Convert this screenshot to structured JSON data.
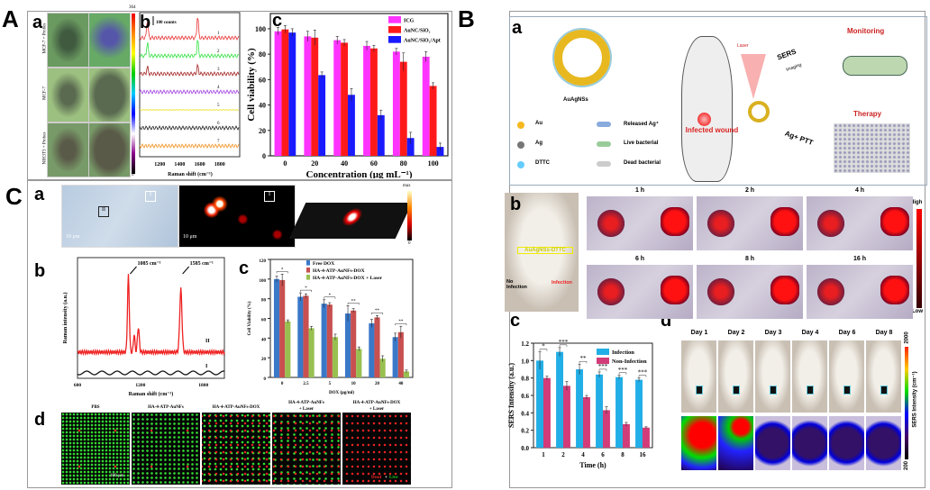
{
  "labels": {
    "A": "A",
    "B": "B",
    "C": "C",
    "a": "a",
    "b": "b",
    "c": "c",
    "d": "d"
  },
  "panelA": {
    "a": {
      "row_labels": [
        "MCF-7 + Probes",
        "MCF-7",
        "NIH3T3 + Probes"
      ],
      "colorbar": {
        "max": "364",
        "min": "0"
      },
      "spot_labels": [
        "1",
        "2",
        "3",
        "4",
        "5",
        "6",
        "7"
      ]
    },
    "b": {
      "scale_label": "100 counts",
      "xlabel": "Raman shift (cm⁻¹)",
      "xticks": [
        "1200",
        "1400",
        "1600",
        "1800"
      ],
      "trace_labels": [
        "1",
        "2",
        "3",
        "4",
        "5",
        "6",
        "7"
      ],
      "trace_colors": [
        "#e83030",
        "#30e040",
        "#a02020",
        "#a040e0",
        "#e8e020",
        "#202020",
        "#f09020"
      ]
    }
  },
  "panelC": {
    "a": {
      "scale_label": "10 μm",
      "region_labels": [
        "I",
        "II"
      ],
      "colorbar": {
        "max": "max",
        "min": "0"
      }
    },
    "b": {
      "ylabel": "Raman intensity (a.u.)",
      "xlabel": "Raman shift (cm⁻¹)",
      "xticks": [
        "600",
        "1200",
        "1800"
      ],
      "peaks": [
        {
          "label": "1085 cm⁻¹",
          "x": 1085
        },
        {
          "label": "1585 cm⁻¹",
          "x": 1585
        }
      ],
      "series_labels": [
        "II",
        "I"
      ]
    },
    "d": {
      "titles": [
        "PBS",
        "HA-4-ATP-AuNFs",
        "HA-4-ATP-AuNFs-DOX",
        "HA-4-ATP-AuNFs\n+ Laser",
        "HA-4-ATP-AuNFs-DOX\n+ Laser"
      ],
      "scale_label": "100 μm",
      "dead": "Dead",
      "plus": "+",
      "live": "Live"
    }
  },
  "panelB": {
    "a": {
      "particle_label": "AuAgNSs",
      "legend": [
        "Au",
        "Ag",
        "DTTC",
        "Released Ag⁺",
        "Live bacterial",
        "Dead bacterial"
      ],
      "laser": "Laser",
      "wound": "Infected wound",
      "sers": "SERS",
      "imaging": "Imaging",
      "agptt": "Ag+ PTT",
      "monitoring": "Monitoring",
      "therapy": "Therapy"
    },
    "b": {
      "probe_label": "AuAgNSs-DTTC",
      "no_infection": "No Infection",
      "infection": "Infection",
      "times": [
        "1 h",
        "2 h",
        "4 h",
        "6 h",
        "8 h",
        "16 h"
      ],
      "colorbar": {
        "max": "High",
        "min": "Low"
      }
    },
    "d": {
      "days": [
        "Day 1",
        "Day 2",
        "Day 3",
        "Day 4",
        "Day 6",
        "Day 8"
      ],
      "colorbar": {
        "label": "SERS Intensity (cm⁻¹)",
        "max": "2000",
        "min": "200"
      }
    }
  },
  "chart_data": [
    {
      "id": "A-c",
      "type": "bar",
      "categories": [
        "0",
        "20",
        "40",
        "60",
        "80",
        "100"
      ],
      "xlabel": "Concentration (μg mL⁻¹)",
      "ylabel": "Cell viability (%)",
      "ylim": [
        0,
        112
      ],
      "yticks": [
        0,
        20,
        40,
        60,
        80,
        100
      ],
      "legend": "top-right",
      "series": [
        {
          "name": "ICG",
          "color": "#ff33ff",
          "values": [
            98,
            94,
            91,
            86.5,
            82,
            78
          ],
          "errors": [
            3,
            4,
            3,
            3.5,
            2.5,
            4
          ]
        },
        {
          "name": "AuNC/SiO₂",
          "color": "#ff1a1a",
          "values": [
            99.5,
            93,
            89,
            84.5,
            74,
            55
          ],
          "errors": [
            3,
            6,
            2.5,
            2.5,
            7,
            2.5
          ]
        },
        {
          "name": "AuNC/SiO₂/Apt",
          "color": "#1a1aff",
          "values": [
            97,
            63.5,
            48,
            32,
            14,
            7
          ],
          "errors": [
            3,
            2.5,
            5,
            4,
            4.5,
            3
          ]
        }
      ]
    },
    {
      "id": "C-c",
      "type": "bar",
      "categories": [
        "0",
        "2.5",
        "5",
        "10",
        "20",
        "40"
      ],
      "xlabel": "DOX (μg/ml)",
      "ylabel": "Cell Viability (%)",
      "ylim": [
        0,
        120
      ],
      "yticks": [
        0,
        20,
        40,
        60,
        80,
        100,
        120
      ],
      "legend": "top-right",
      "significance": [
        "*",
        "*",
        "*",
        "**",
        "**",
        "**"
      ],
      "series": [
        {
          "name": "Free DOX",
          "color": "#3a78c8",
          "values": [
            100,
            82,
            75,
            65,
            55,
            41
          ],
          "errors": [
            3,
            4,
            4,
            8,
            4,
            4
          ]
        },
        {
          "name": "HA-4-ATP-AuNFs-DOX",
          "color": "#c85050",
          "values": [
            99,
            83,
            74,
            68,
            61,
            46
          ],
          "errors": [
            6,
            2,
            2,
            2,
            2,
            6
          ]
        },
        {
          "name": "HA-4-ATP-AuNFs-DOX + Laser",
          "color": "#98c050",
          "values": [
            57,
            50,
            41,
            29,
            19,
            6
          ],
          "errors": [
            1.5,
            2,
            3,
            2,
            3,
            1.5
          ]
        }
      ]
    },
    {
      "id": "B-c",
      "type": "bar",
      "categories": [
        "1",
        "2",
        "4",
        "6",
        "8",
        "16"
      ],
      "xlabel": "Time (h)",
      "ylabel": "SERS Intensity (a.u.)",
      "ylim": [
        0,
        1.2
      ],
      "yticks": [
        "0.0",
        "0.2",
        "0.4",
        "0.6",
        "0.8",
        "1.0",
        "1.2"
      ],
      "legend": "top-right",
      "significance": [
        "*",
        "***",
        "**",
        "***",
        "***",
        "***"
      ],
      "series": [
        {
          "name": "Infection",
          "color": "#22aee6",
          "values": [
            1.0,
            1.1,
            0.9,
            0.84,
            0.81,
            0.78
          ],
          "errors": [
            0.1,
            0.05,
            0.06,
            0.03,
            0.02,
            0.02
          ]
        },
        {
          "name": "Non-Infection",
          "color": "#d23c78",
          "values": [
            0.8,
            0.71,
            0.58,
            0.43,
            0.27,
            0.23
          ],
          "errors": [
            0.02,
            0.05,
            0.02,
            0.04,
            0.02,
            0.01
          ]
        }
      ]
    }
  ]
}
